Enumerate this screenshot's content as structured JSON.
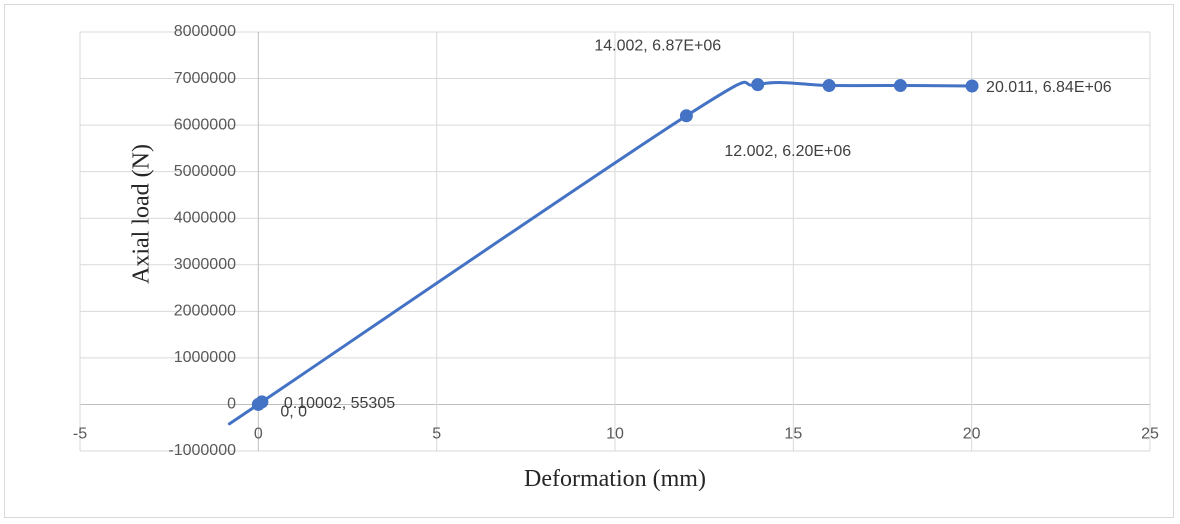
{
  "chart_data": {
    "type": "scatter",
    "title": "",
    "xlabel": "Deformation  (mm)",
    "ylabel": "Axial  load  (N)",
    "xlim": [
      -5,
      25
    ],
    "ylim": [
      -1000000,
      8000000
    ],
    "x_ticks": [
      "-5",
      "0",
      "5",
      "10",
      "15",
      "20",
      "25"
    ],
    "y_ticks": [
      "-1000000",
      "0",
      "1000000",
      "2000000",
      "3000000",
      "4000000",
      "5000000",
      "6000000",
      "7000000",
      "8000000"
    ],
    "grid": true,
    "line_style": "smooth",
    "series": [
      {
        "color": "#4472c4",
        "x": [
          0,
          0.10002,
          12.002,
          14.002,
          16.002,
          18.002,
          20.011
        ],
        "y": [
          0,
          55305,
          6200000,
          6870000,
          6850000,
          6850000,
          6840000
        ]
      }
    ],
    "data_labels": [
      {
        "text": "0, 0",
        "x": 0,
        "y": 0,
        "position": "below-right"
      },
      {
        "text": "0.10002, 55305",
        "x": 0.10002,
        "y": 55305,
        "position": "right"
      },
      {
        "text": "12.002, 6.20E+06",
        "x": 12.002,
        "y": 6200000,
        "position": "below-right"
      },
      {
        "text": "14.002, 6.87E+06",
        "x": 14.002,
        "y": 6870000,
        "position": "above-left"
      },
      {
        "text": "20.011, 6.84E+06",
        "x": 20.011,
        "y": 6840000,
        "position": "right"
      }
    ]
  }
}
